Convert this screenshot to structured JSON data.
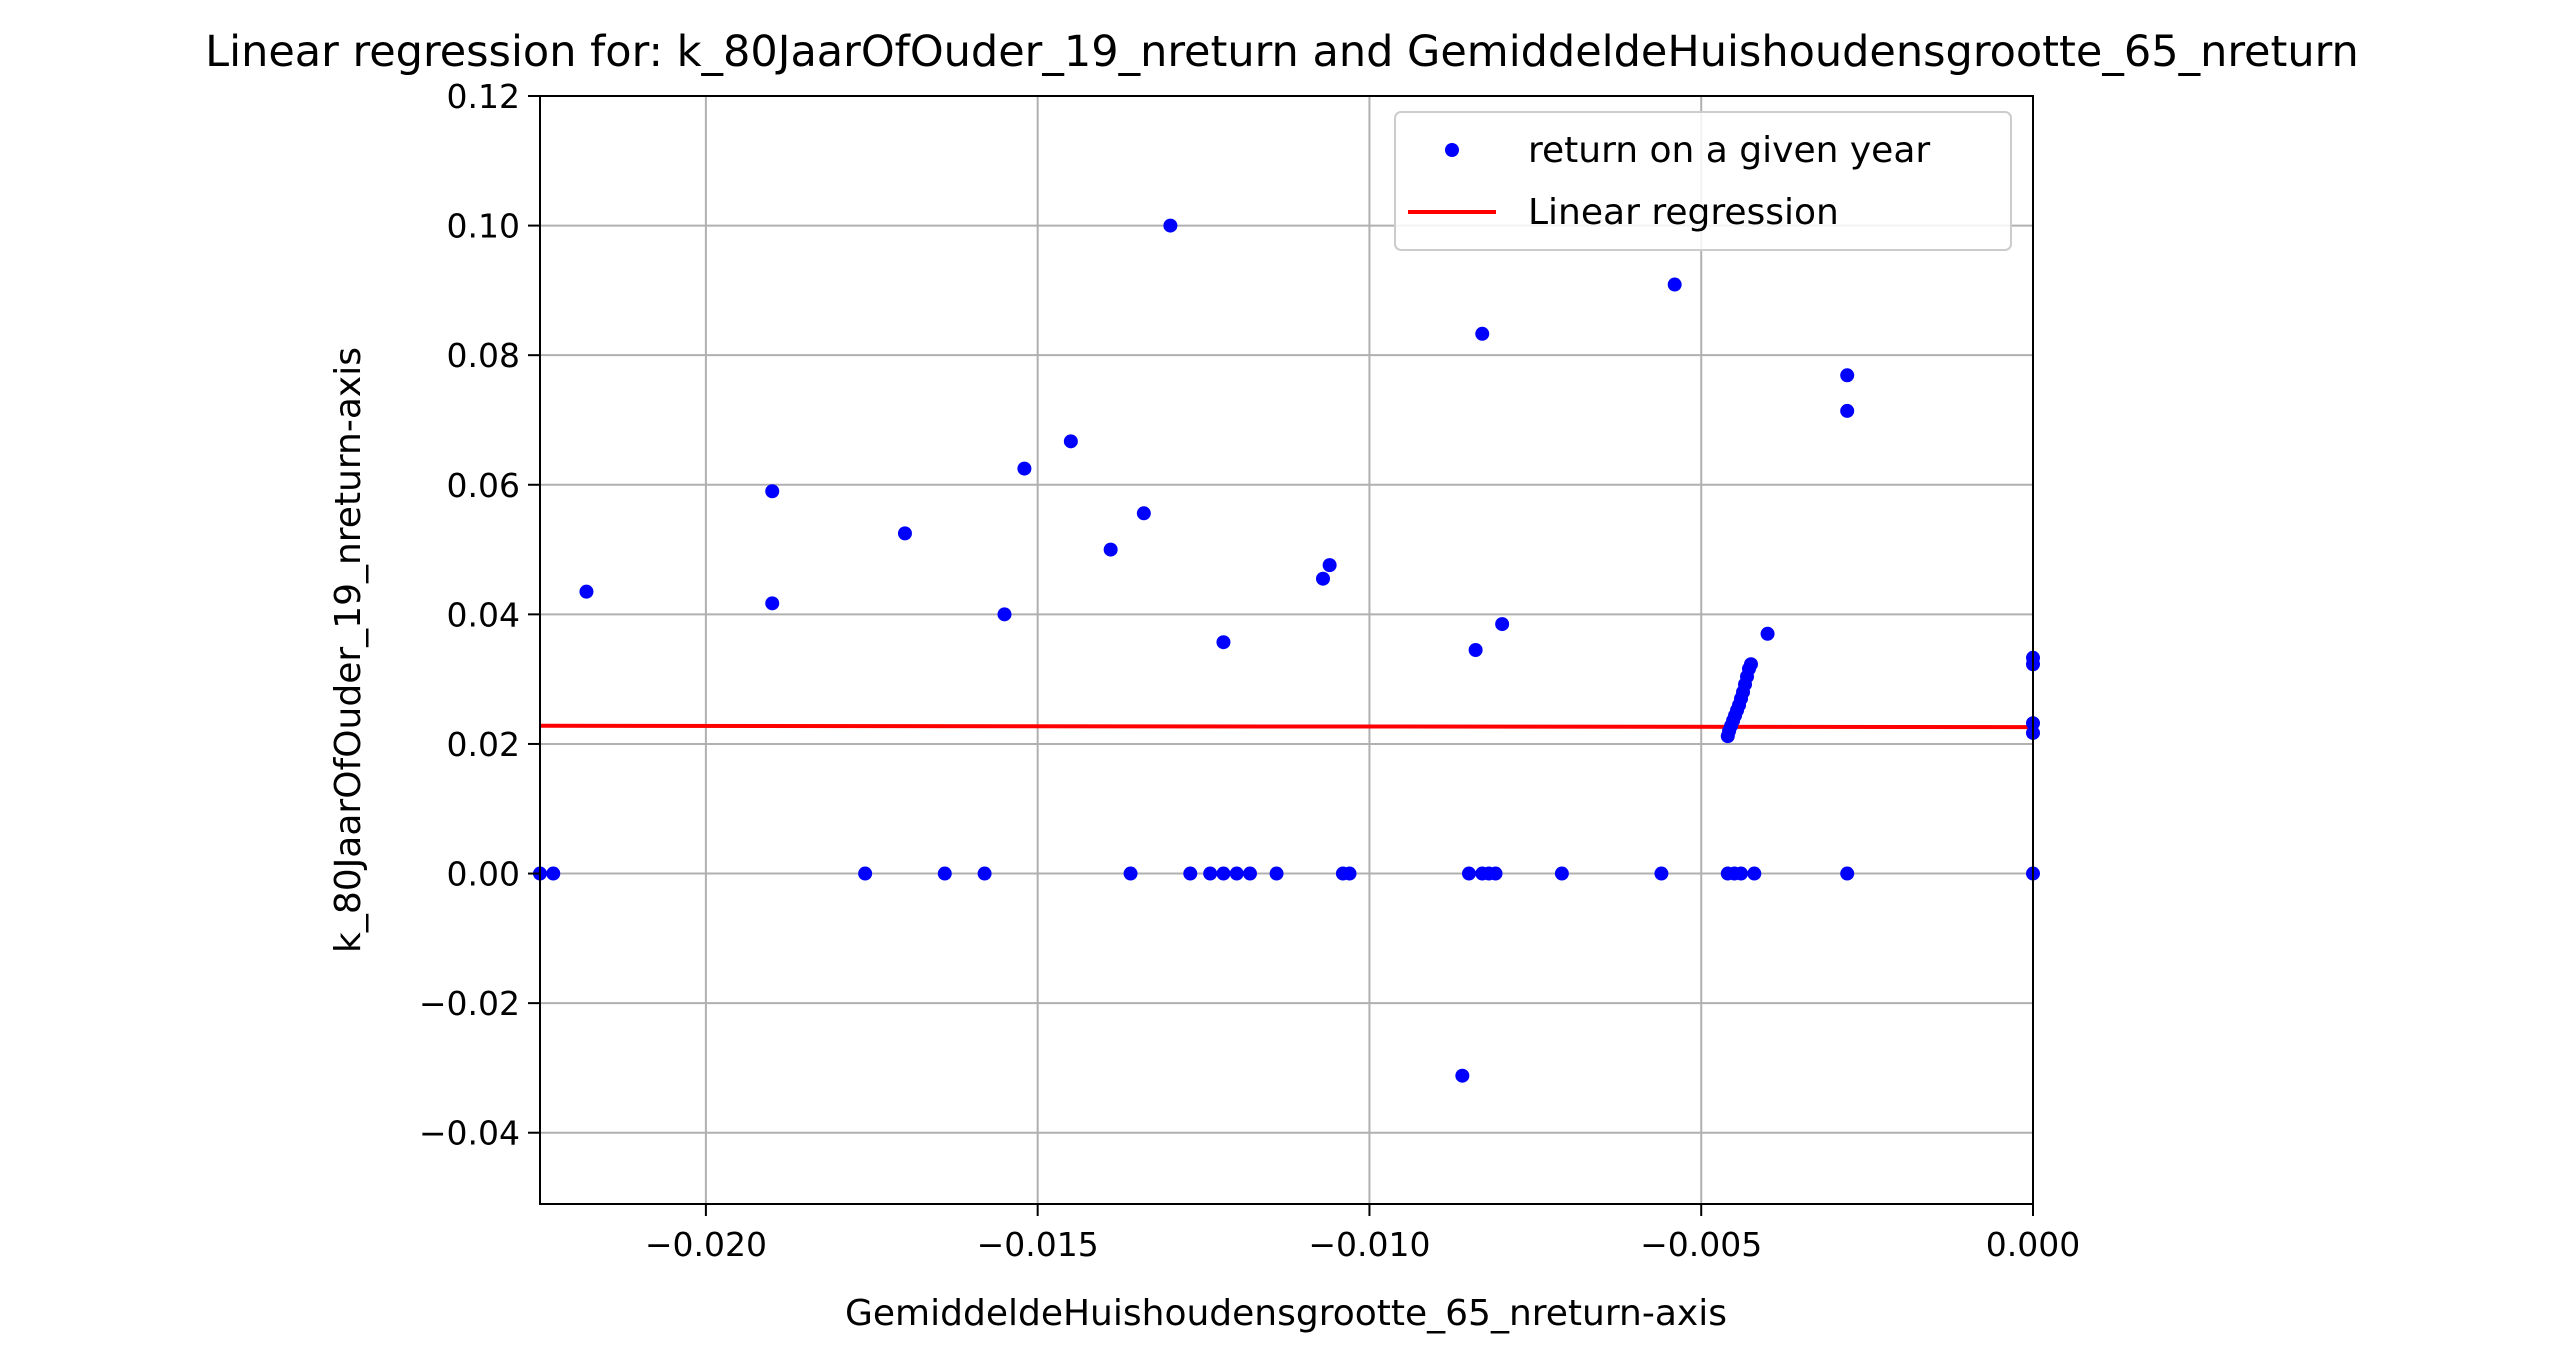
{
  "chart_data": {
    "type": "scatter",
    "title": "Linear regression for: k_80JaarOfOuder_19_nreturn and GemiddeldeHuishoudensgrootte_65_nreturn",
    "xlabel": "GemiddeldeHuishoudensgrootte_65_nreturn-axis",
    "ylabel": "k_80JaarOfOuder_19_nreturn-axis",
    "xlim": [
      -0.0225,
      0.0
    ],
    "ylim": [
      -0.051,
      0.12
    ],
    "xticks": [
      -0.02,
      -0.015,
      -0.01,
      -0.005,
      0.0
    ],
    "xtick_labels": [
      "−0.020",
      "−0.015",
      "−0.010",
      "−0.005",
      "0.000"
    ],
    "yticks": [
      -0.04,
      -0.02,
      0.0,
      0.02,
      0.04,
      0.06,
      0.08,
      0.1,
      0.12
    ],
    "ytick_labels": [
      "−0.04",
      "−0.02",
      "0.00",
      "0.02",
      "0.04",
      "0.06",
      "0.08",
      "0.10",
      "0.12"
    ],
    "grid": true,
    "legend_placement": "top-right",
    "series": [
      {
        "name": "return on a given year",
        "kind": "scatter",
        "color": "#0000ff",
        "points": [
          [
            -0.0218,
            0.0435
          ],
          [
            -0.019,
            0.059
          ],
          [
            -0.019,
            0.0417
          ],
          [
            -0.017,
            0.0525
          ],
          [
            -0.0155,
            0.04
          ],
          [
            -0.0152,
            0.0625
          ],
          [
            -0.0145,
            0.0667
          ],
          [
            -0.0139,
            0.05
          ],
          [
            -0.0134,
            0.0556
          ],
          [
            -0.013,
            0.1
          ],
          [
            -0.0122,
            0.0357
          ],
          [
            -0.0107,
            0.0455
          ],
          [
            -0.0106,
            0.0476
          ],
          [
            -0.0084,
            0.0345
          ],
          [
            -0.0083,
            0.0833
          ],
          [
            -0.008,
            0.0385
          ],
          [
            -0.0054,
            0.0909
          ],
          [
            -0.004,
            0.037
          ],
          [
            -0.0028,
            0.0769
          ],
          [
            -0.0028,
            0.0714
          ],
          [
            -0.0086,
            -0.0312
          ],
          [
            -0.0046,
            0.0212
          ],
          [
            -0.00458,
            0.022
          ],
          [
            -0.00455,
            0.0228
          ],
          [
            -0.00452,
            0.0236
          ],
          [
            -0.00449,
            0.0244
          ],
          [
            -0.00446,
            0.0252
          ],
          [
            -0.00443,
            0.026
          ],
          [
            -0.0044,
            0.027
          ],
          [
            -0.00437,
            0.028
          ],
          [
            -0.00434,
            0.0292
          ],
          [
            -0.00431,
            0.0304
          ],
          [
            -0.00428,
            0.0316
          ],
          [
            -0.00425,
            0.0323
          ],
          [
            0.0,
            0.0333
          ],
          [
            0.0,
            0.0323
          ],
          [
            0.0,
            0.0232
          ],
          [
            0.0,
            0.0217
          ],
          [
            -0.0225,
            0.0
          ],
          [
            -0.0223,
            0.0
          ],
          [
            -0.0176,
            0.0
          ],
          [
            -0.0164,
            0.0
          ],
          [
            -0.0158,
            0.0
          ],
          [
            -0.0136,
            0.0
          ],
          [
            -0.0127,
            0.0
          ],
          [
            -0.0124,
            0.0
          ],
          [
            -0.0122,
            0.0
          ],
          [
            -0.012,
            0.0
          ],
          [
            -0.0118,
            0.0
          ],
          [
            -0.0114,
            0.0
          ],
          [
            -0.0104,
            0.0
          ],
          [
            -0.0103,
            0.0
          ],
          [
            -0.0085,
            0.0
          ],
          [
            -0.0083,
            0.0
          ],
          [
            -0.0082,
            0.0
          ],
          [
            -0.0081,
            0.0
          ],
          [
            -0.0071,
            0.0
          ],
          [
            -0.0056,
            0.0
          ],
          [
            -0.0046,
            0.0
          ],
          [
            -0.0045,
            0.0
          ],
          [
            -0.0044,
            0.0
          ],
          [
            -0.0042,
            0.0
          ],
          [
            -0.0028,
            0.0
          ],
          [
            0.0,
            0.0
          ]
        ]
      },
      {
        "name": "Linear regression",
        "kind": "line",
        "color": "#ff0000",
        "x": [
          -0.0225,
          0.0
        ],
        "y": [
          0.0228,
          0.0226
        ]
      }
    ]
  }
}
